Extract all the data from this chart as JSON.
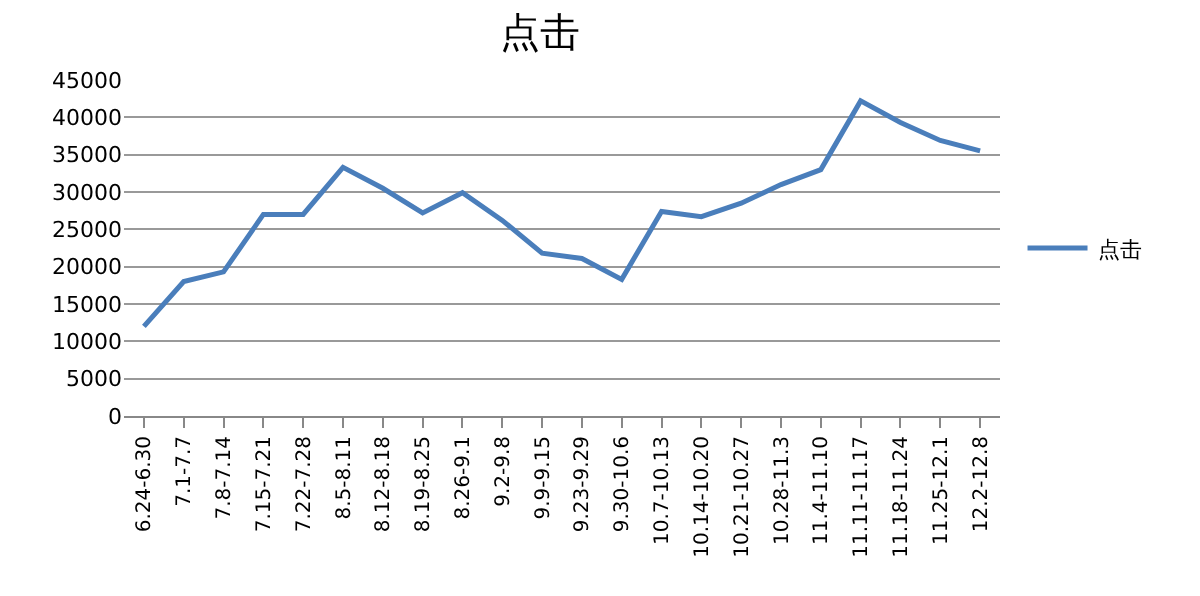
{
  "chart_data": {
    "type": "line",
    "title": "点击",
    "categories": [
      "6.24-6.30",
      "7.1-7.7",
      "7.8-7.14",
      "7.15-7.21",
      "7.22-7.28",
      "8.5-8.11",
      "8.12-8.18",
      "8.19-8.25",
      "8.26-9.1",
      "9.2-9.8",
      "9.9-9.15",
      "9.23-9.29",
      "9.30-10.6",
      "10.7-10.13",
      "10.14-10.20",
      "10.21-10.27",
      "10.28-11.3",
      "11.4-11.10",
      "11.11-11.17",
      "11.18-11.24",
      "11.25-12.1",
      "12.2-12.8"
    ],
    "series": [
      {
        "name": "点击",
        "color": "#4a7ebb",
        "values": [
          12000,
          18000,
          19300,
          27000,
          27000,
          33300,
          30500,
          27200,
          29900,
          26200,
          21800,
          21100,
          18300,
          27400,
          26700,
          28500,
          31000,
          33000,
          42200,
          39300,
          36900,
          35500
        ]
      }
    ],
    "ylim": [
      0,
      45000
    ],
    "yticks": [
      0,
      5000,
      10000,
      15000,
      20000,
      25000,
      30000,
      35000,
      40000,
      45000
    ],
    "grid": "y",
    "legend": "right",
    "marker": "none",
    "line_style": "solid"
  }
}
